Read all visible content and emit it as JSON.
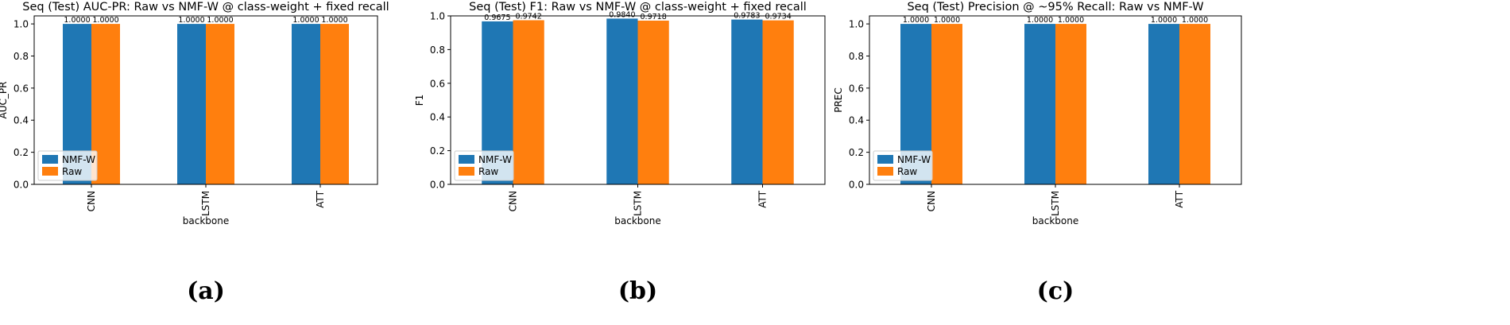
{
  "chart_data": [
    {
      "type": "bar",
      "panel_label": "(a)",
      "title": "Seq (Test) AUC-PR: Raw vs NMF-W @ class-weight + fixed recall",
      "xlabel": "backbone",
      "ylabel": "AUC_PR",
      "ylim": [
        0,
        1.05
      ],
      "yticks": [
        "0.0",
        "0.2",
        "0.4",
        "0.6",
        "0.8",
        "1.0"
      ],
      "categories": [
        "CNN",
        "LSTM",
        "ATT"
      ],
      "series": [
        {
          "name": "NMF-W",
          "values": [
            1.0,
            1.0,
            1.0
          ],
          "labels": [
            "1.0000",
            "1.0000",
            "1.0000"
          ]
        },
        {
          "name": "Raw",
          "values": [
            1.0,
            1.0,
            1.0
          ],
          "labels": [
            "1.0000",
            "1.0000",
            "1.0000"
          ]
        }
      ],
      "legend": "lower-left"
    },
    {
      "type": "bar",
      "panel_label": "(b)",
      "title": "Seq (Test) F1: Raw vs NMF-W @ class-weight + fixed recall",
      "xlabel": "backbone",
      "ylabel": "F1",
      "ylim": [
        0,
        1.0
      ],
      "yticks": [
        "0.0",
        "0.2",
        "0.4",
        "0.6",
        "0.8",
        "1.0"
      ],
      "categories": [
        "CNN",
        "LSTM",
        "ATT"
      ],
      "series": [
        {
          "name": "NMF-W",
          "values": [
            0.9675,
            0.984,
            0.9783
          ],
          "labels": [
            "0.9675",
            "0.9840",
            "0.9783"
          ]
        },
        {
          "name": "Raw",
          "values": [
            0.9742,
            0.9718,
            0.9734
          ],
          "labels": [
            "0.9742",
            "0.9718",
            "0.9734"
          ]
        }
      ],
      "legend": "lower-left"
    },
    {
      "type": "bar",
      "panel_label": "(c)",
      "title": "Seq (Test) Precision @ ~95% Recall: Raw vs NMF-W",
      "xlabel": "backbone",
      "ylabel": "PREC",
      "ylim": [
        0,
        1.05
      ],
      "yticks": [
        "0.0",
        "0.2",
        "0.4",
        "0.6",
        "0.8",
        "1.0"
      ],
      "categories": [
        "CNN",
        "LSTM",
        "ATT"
      ],
      "series": [
        {
          "name": "NMF-W",
          "values": [
            1.0,
            1.0,
            1.0
          ],
          "labels": [
            "1.0000",
            "1.0000",
            "1.0000"
          ]
        },
        {
          "name": "Raw",
          "values": [
            1.0,
            1.0,
            1.0
          ],
          "labels": [
            "1.0000",
            "1.0000",
            "1.0000"
          ]
        }
      ],
      "legend": "lower-left"
    }
  ],
  "colors": {
    "NMF-W": "#1f77b4",
    "Raw": "#ff7f0e"
  }
}
